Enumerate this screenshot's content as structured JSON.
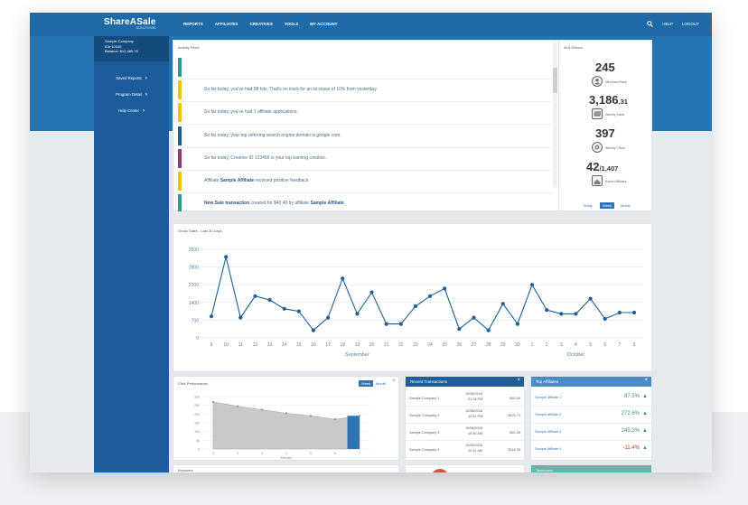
{
  "app": {
    "logo": "ShareASale",
    "logo_sub": "SOLUTIONS"
  },
  "nav": {
    "items": [
      "REPORTS",
      "AFFILIATES",
      "CREATIVES",
      "TOOLS",
      "MY ACCOUNT"
    ],
    "help": "HELP",
    "logout": "LOGOUT"
  },
  "account": {
    "company": "Sample Company",
    "id": "ID# 12345",
    "balance": "Balance: $12,485.76"
  },
  "sidebar": {
    "items": [
      "Saved Reports",
      "Program Detail",
      "Help Center"
    ]
  },
  "activity": {
    "title": "Activity Feed",
    "rows": [
      {
        "color": "#2a9d8f",
        "text": ""
      },
      {
        "color": "#f1c40f",
        "text": "So far today, you've had 98 hits. That's on track for an increase of 10% from yesterday."
      },
      {
        "color": "#f1c40f",
        "text": "So far today, you've had 1 affiliate applications."
      },
      {
        "color": "#1f5f97",
        "text": "So far today, your top referring search engine domain is google.com."
      },
      {
        "color": "#8e3b7a",
        "text": "So far today, Creative ID 123456 is your top earning creative."
      },
      {
        "color": "#f1c40f",
        "pre": "Affiliate ",
        "bold": "Sample Affiliate",
        "post": " received positive feedback."
      },
      {
        "color": "#2a9d8f",
        "bold": "New Sale transaction",
        "pre2": " created for $40.40 by affiliate ",
        "bold2": "Sample Affiliate",
        "post": "."
      }
    ]
  },
  "glance": {
    "title": "At A Glance",
    "stats": [
      {
        "big": "245",
        "small": "",
        "label": "Merchant Rank",
        "icon": "user-icon"
      },
      {
        "big": "3,186",
        "small": ".31",
        "label": "Weekly Sales",
        "icon": "money-icon"
      },
      {
        "big": "397",
        "small": "",
        "label": "Weekly Clicks",
        "icon": "click-icon"
      },
      {
        "big": "42",
        "small": "/1,407",
        "label": "Active Affiliates",
        "icon": "team-icon"
      }
    ],
    "toggle": [
      "Today",
      "Week",
      "Month"
    ]
  },
  "chart_data": [
    {
      "type": "line",
      "title": "Gross Sales - Last 30 Days",
      "ylim": [
        0,
        3500
      ],
      "yticks": [
        0,
        700,
        1400,
        2100,
        2800,
        3500
      ],
      "categories": [
        "9",
        "10",
        "11",
        "12",
        "13",
        "14",
        "15",
        "16",
        "17",
        "18",
        "19",
        "20",
        "21",
        "22",
        "23",
        "24",
        "25",
        "26",
        "27",
        "28",
        "29",
        "30",
        "1",
        "2",
        "3",
        "4",
        "5",
        "6",
        "7",
        "8"
      ],
      "values": [
        850,
        3200,
        800,
        1650,
        1500,
        1150,
        1050,
        300,
        800,
        2350,
        950,
        1800,
        550,
        550,
        1250,
        1650,
        1950,
        350,
        800,
        300,
        1350,
        550,
        2100,
        1100,
        950,
        950,
        1550,
        750,
        1000,
        1000
      ],
      "month_labels": [
        "September",
        "October"
      ],
      "grid": true
    },
    {
      "type": "area",
      "title": "Click Performance",
      "ylim": [
        0,
        300
      ],
      "yticks": [
        0,
        50,
        100,
        150,
        200,
        250,
        300
      ],
      "categories": [
        "1",
        "2",
        "3",
        "4",
        "5",
        "6",
        "7"
      ],
      "values": [
        270,
        245,
        225,
        205,
        190,
        170,
        190
      ],
      "xlabel": "Minutes",
      "toggle": [
        "Week",
        "Month"
      ]
    }
  ],
  "recent": {
    "title": "Recent Transactions",
    "rows": [
      {
        "company": "Sample Company 1",
        "date": "10/08/2018",
        "time": "01:28 PM",
        "amount": "$40.40"
      },
      {
        "company": "Sample Company 2",
        "date": "10/08/2018",
        "time": "12:51 PM",
        "amount": "$420.73"
      },
      {
        "company": "Sample Company 3",
        "date": "10/08/2018",
        "time": "10:30 AM",
        "amount": "$40.39"
      },
      {
        "company": "Sample Company 4",
        "date": "10/08/2018",
        "time": "10:41 AM",
        "amount": "$116.28"
      }
    ]
  },
  "top": {
    "title": "Top Affiliates",
    "rows": [
      {
        "name": "Sample Affiliate 1",
        "pct": "87.5%",
        "dir": "up"
      },
      {
        "name": "Sample Affiliate 2",
        "pct": "272.6%",
        "dir": "up"
      },
      {
        "name": "Sample Affiliate 3",
        "pct": "245.3%",
        "dir": "up"
      },
      {
        "name": "Sample Affiliate 4",
        "pct": "-11.4%",
        "dir": "down"
      }
    ]
  },
  "bottom": {
    "left_title": "Browsers",
    "right_title": "Tackboard"
  },
  "colors": {
    "brand": "#2573b0",
    "sidebar": "#1d5c9b",
    "line": "#1f5f97",
    "teal": "#5fb8a8"
  }
}
